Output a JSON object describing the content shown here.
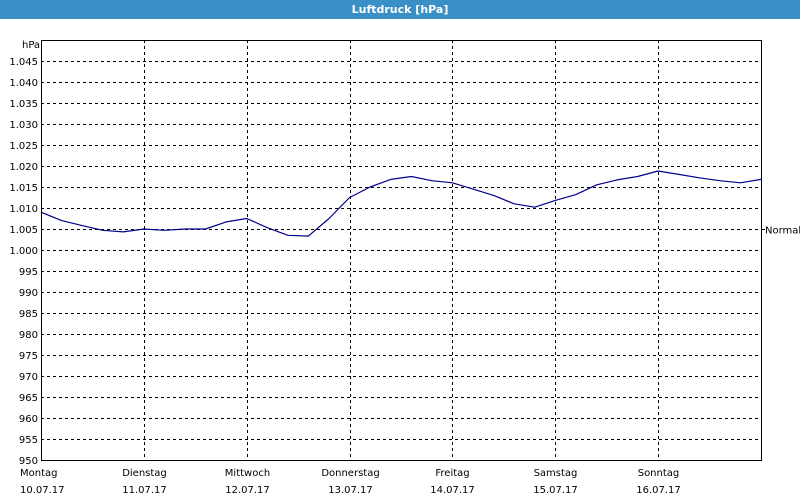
{
  "window": {
    "title": "Luftdruck [hPa]"
  },
  "chart_data": {
    "type": "line",
    "title": "Luftdruck [hPa]",
    "ylabel": "hPa",
    "xlabel": "",
    "ylim": [
      950,
      1050
    ],
    "xlim": [
      0,
      7
    ],
    "yticks": [
      950,
      955,
      960,
      965,
      970,
      975,
      980,
      985,
      990,
      995,
      1000,
      1005,
      1010,
      1015,
      1020,
      1025,
      1030,
      1035,
      1040,
      1045
    ],
    "ytick_labels": [
      "950",
      "955",
      "960",
      "965",
      "970",
      "975",
      "980",
      "985",
      "990",
      "995",
      "1.000",
      "1.005",
      "1.010",
      "1.015",
      "1.020",
      "1.025",
      "1.030",
      "1.035",
      "1.040",
      "1.045"
    ],
    "x_ticks": [
      {
        "day": "Montag",
        "date": "10.07.17"
      },
      {
        "day": "Dienstag",
        "date": "11.07.17"
      },
      {
        "day": "Mittwoch",
        "date": "12.07.17"
      },
      {
        "day": "Donnerstag",
        "date": "13.07.17"
      },
      {
        "day": "Freitag",
        "date": "14.07.17"
      },
      {
        "day": "Samstag",
        "date": "15.07.17"
      },
      {
        "day": "Sonntag",
        "date": "16.07.17"
      }
    ],
    "grid": true,
    "reference_line": {
      "label": "Normal",
      "value": 1005
    },
    "series": [
      {
        "color": "#00008b",
        "x": [
          0,
          0.2,
          0.4,
          0.6,
          0.8,
          1.0,
          1.2,
          1.4,
          1.6,
          1.8,
          2.0,
          2.2,
          2.4,
          2.6,
          2.8,
          3.0,
          3.2,
          3.4,
          3.6,
          3.8,
          4.0,
          4.2,
          4.4,
          4.6,
          4.8,
          5.0,
          5.2,
          5.4,
          5.6,
          5.8,
          6.0,
          6.2,
          6.4,
          6.6,
          6.8,
          7.0
        ],
        "y": [
          1009,
          1007,
          1005.8,
          1004.7,
          1004.3,
          1005,
          1004.7,
          1005,
          1005,
          1006.7,
          1007.5,
          1005.3,
          1003.5,
          1003.3,
          1007.5,
          1012.5,
          1015,
          1016.8,
          1017.5,
          1016.5,
          1016,
          1014.5,
          1013,
          1011,
          1010.2,
          1011.8,
          1013.2,
          1015.5,
          1016.7,
          1017.5,
          1018.8,
          1018,
          1017.2,
          1016.5,
          1016,
          1016.8
        ]
      }
    ]
  }
}
